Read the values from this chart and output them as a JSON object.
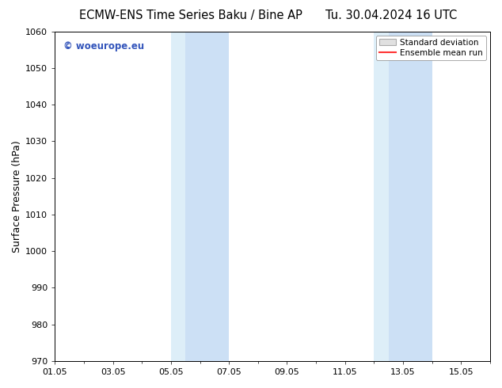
{
  "title_left": "ECMW-ENS Time Series Baku / Bine AP",
  "title_right": "Tu. 30.04.2024 16 UTC",
  "ylabel": "Surface Pressure (hPa)",
  "ylim": [
    970,
    1060
  ],
  "yticks": [
    970,
    980,
    990,
    1000,
    1010,
    1020,
    1030,
    1040,
    1050,
    1060
  ],
  "xlim": [
    0,
    15
  ],
  "xtick_labels": [
    "01.05",
    "03.05",
    "05.05",
    "07.05",
    "09.05",
    "11.05",
    "13.05",
    "15.05"
  ],
  "xtick_positions": [
    0,
    2,
    4,
    6,
    8,
    10,
    12,
    14
  ],
  "shaded_regions": [
    {
      "start": 4.0,
      "end": 4.5,
      "color": "#ddeef8"
    },
    {
      "start": 4.5,
      "end": 6.0,
      "color": "#cce0f5"
    },
    {
      "start": 11.0,
      "end": 11.5,
      "color": "#ddeef8"
    },
    {
      "start": 11.5,
      "end": 13.0,
      "color": "#cce0f5"
    }
  ],
  "background_color": "#ffffff",
  "watermark_text": "© woeurope.eu",
  "watermark_color": "#3355bb",
  "legend_std_dev_label": "Standard deviation",
  "legend_ensemble_label": "Ensemble mean run",
  "legend_std_dev_facecolor": "#e0e0e0",
  "legend_std_dev_edgecolor": "#aaaaaa",
  "legend_ensemble_color": "#ff3333",
  "title_fontsize": 10.5,
  "ylabel_fontsize": 9,
  "tick_fontsize": 8,
  "watermark_fontsize": 8.5
}
